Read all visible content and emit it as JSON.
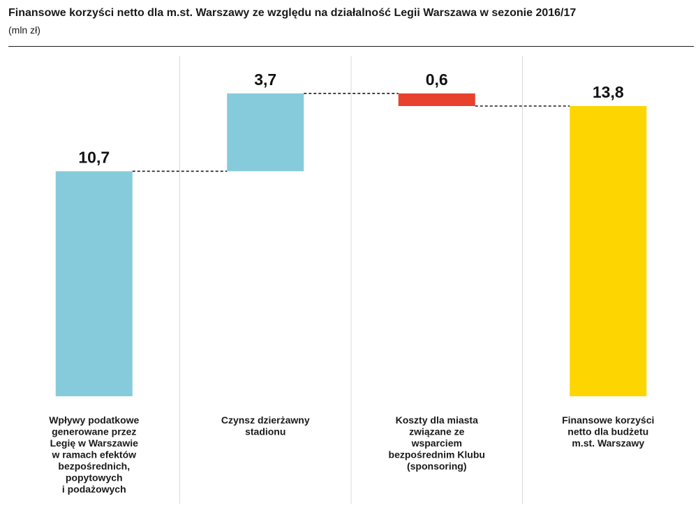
{
  "header": {
    "title": "Finansowe korzyści netto dla m.st. Warszawy ze względu na działalność Legii Warszawa w sezonie 2016/17",
    "subtitle": "(mln zł)"
  },
  "colors": {
    "increase": "#86CBDC",
    "decrease": "#E8412E",
    "total": "#FDD500",
    "text": "#1a1a1a",
    "divider": "#d9d9d9"
  },
  "chart_data": {
    "type": "bar",
    "subtype": "waterfall",
    "title": "Finansowe korzyści netto dla m.st. Warszawy ze względu na działalność Legii Warszawa w sezonie 2016/17",
    "subtitle": "(mln zł)",
    "categories": [
      [
        "Wpływy podatkowe",
        "generowane przez",
        "Legię w Warszawie",
        "w ramach efektów",
        "bezpośrednich,",
        "popytowych",
        "i podażowych"
      ],
      [
        "Czynsz dzierżawny",
        "stadionu"
      ],
      [
        "Koszty dla miasta",
        "związane ze",
        "wsparciem",
        "bezpośrednim Klubu",
        "(sponsoring)"
      ],
      [
        "Finansowe korzyści",
        "netto dla budżetu",
        "m.st. Warszawy"
      ]
    ],
    "values": [
      10.7,
      3.7,
      -0.6,
      13.8
    ],
    "value_labels": [
      "10,7",
      "3,7",
      "0,6",
      "13,8"
    ],
    "bar_kind": [
      "increase",
      "increase",
      "decrease",
      "total"
    ],
    "ylim": [
      0,
      13.8
    ],
    "grid": false,
    "connectors": true
  }
}
